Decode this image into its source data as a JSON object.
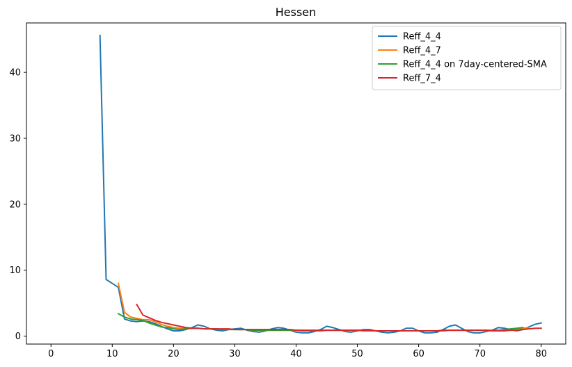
{
  "chart_data": {
    "type": "line",
    "title": "Hessen",
    "xlabel": "",
    "ylabel": "",
    "xlim": [
      -4,
      84
    ],
    "ylim": [
      -1.2,
      47.5
    ],
    "xticks": [
      0,
      10,
      20,
      30,
      40,
      50,
      60,
      70,
      80
    ],
    "yticks": [
      0,
      10,
      20,
      30,
      40
    ],
    "grid": false,
    "legend_position": "top-right",
    "series": [
      {
        "name": "Reff_4_4",
        "color": "#1f77b4",
        "x": [
          8,
          9,
          10,
          11,
          12,
          13,
          14,
          15,
          16,
          17,
          18,
          19,
          20,
          21,
          22,
          23,
          24,
          25,
          26,
          27,
          28,
          29,
          30,
          31,
          32,
          33,
          34,
          35,
          36,
          37,
          38,
          39,
          40,
          41,
          42,
          43,
          44,
          45,
          46,
          47,
          48,
          49,
          50,
          51,
          52,
          53,
          54,
          55,
          56,
          57,
          58,
          59,
          60,
          61,
          62,
          63,
          64,
          65,
          66,
          67,
          68,
          69,
          70,
          71,
          72,
          73,
          74,
          75,
          76,
          77,
          78,
          79,
          80
        ],
        "values": [
          45.6,
          8.6,
          8.0,
          7.4,
          2.6,
          2.3,
          2.2,
          2.3,
          2.2,
          1.9,
          1.5,
          1.1,
          0.8,
          0.8,
          1.0,
          1.3,
          1.7,
          1.5,
          1.1,
          0.9,
          0.8,
          1.0,
          1.1,
          1.2,
          0.9,
          0.7,
          0.6,
          0.8,
          1.1,
          1.3,
          1.2,
          0.9,
          0.6,
          0.5,
          0.5,
          0.7,
          1.0,
          1.5,
          1.3,
          1.0,
          0.7,
          0.6,
          0.8,
          1.0,
          1.0,
          0.8,
          0.6,
          0.5,
          0.6,
          0.8,
          1.2,
          1.2,
          0.8,
          0.5,
          0.5,
          0.6,
          1.0,
          1.5,
          1.7,
          1.2,
          0.7,
          0.5,
          0.5,
          0.7,
          0.9,
          1.3,
          1.2,
          1.0,
          0.8,
          1.0,
          1.4,
          1.8,
          2.0
        ]
      },
      {
        "name": "Reff_4_7",
        "color": "#ff7f0e",
        "x": [
          11,
          12,
          13,
          14,
          15,
          16,
          17,
          18,
          19,
          20,
          21,
          22,
          23,
          24,
          25,
          26,
          27,
          28,
          29,
          30,
          31,
          32,
          33,
          34,
          35,
          36,
          37,
          38,
          39,
          40,
          41,
          42,
          43,
          44,
          45,
          46,
          47,
          48,
          49,
          50,
          51,
          52,
          53,
          54,
          55,
          56,
          57,
          58,
          59,
          60,
          61,
          62,
          63,
          64,
          65,
          66,
          67,
          68,
          69,
          70,
          71,
          72,
          73,
          74,
          75,
          76,
          77,
          78
        ],
        "values": [
          8.0,
          3.6,
          2.9,
          2.7,
          2.5,
          2.5,
          2.2,
          1.8,
          1.5,
          1.3,
          1.2,
          1.2,
          1.2,
          1.2,
          1.1,
          1.1,
          1.1,
          1.0,
          1.0,
          1.0,
          1.0,
          1.0,
          0.9,
          0.9,
          0.9,
          0.9,
          0.9,
          0.9,
          0.9,
          0.9,
          0.9,
          0.8,
          0.8,
          0.8,
          0.9,
          0.9,
          0.9,
          0.9,
          0.9,
          0.9,
          0.9,
          0.8,
          0.8,
          0.8,
          0.8,
          0.8,
          0.8,
          0.8,
          0.8,
          0.8,
          0.8,
          0.8,
          0.8,
          0.8,
          0.9,
          0.9,
          0.9,
          0.9,
          0.9,
          0.9,
          0.9,
          0.8,
          0.8,
          0.9,
          0.9,
          1.0,
          1.2,
          1.3
        ]
      },
      {
        "name": "Reff_4_4 on 7day-centered-SMA",
        "color": "#2ca02c",
        "x": [
          11,
          12,
          13,
          14,
          15,
          16,
          17,
          18,
          19,
          20,
          21,
          22,
          23,
          24,
          25,
          26,
          27,
          28,
          29,
          30,
          31,
          32,
          33,
          34,
          35,
          36,
          37,
          38,
          39,
          40,
          41,
          42,
          43,
          44,
          45,
          46,
          47,
          48,
          49,
          50,
          51,
          52,
          53,
          54,
          55,
          56,
          57,
          58,
          59,
          60,
          61,
          62,
          63,
          64,
          65,
          66,
          67,
          68,
          69,
          70,
          71,
          72,
          73,
          74,
          75,
          76,
          77
        ],
        "values": [
          3.4,
          2.9,
          2.6,
          2.5,
          2.4,
          2.0,
          1.7,
          1.4,
          1.3,
          1.1,
          1.0,
          1.1,
          1.2,
          1.2,
          1.1,
          1.1,
          1.1,
          1.0,
          1.0,
          1.0,
          1.0,
          1.0,
          0.9,
          0.9,
          0.9,
          0.9,
          0.9,
          0.9,
          0.9,
          0.9,
          0.8,
          0.8,
          0.8,
          0.8,
          0.9,
          0.9,
          0.9,
          0.9,
          0.9,
          0.9,
          0.8,
          0.8,
          0.8,
          0.8,
          0.8,
          0.8,
          0.8,
          0.8,
          0.8,
          0.8,
          0.8,
          0.8,
          0.8,
          0.8,
          0.9,
          0.9,
          0.9,
          0.9,
          0.9,
          0.9,
          0.9,
          0.9,
          0.9,
          1.0,
          1.1,
          1.2,
          1.3
        ]
      },
      {
        "name": "Reff_7_4",
        "color": "#d62728",
        "x": [
          14,
          15,
          16,
          17,
          18,
          19,
          20,
          21,
          22,
          23,
          24,
          25,
          26,
          27,
          28,
          29,
          30,
          31,
          32,
          33,
          34,
          35,
          36,
          37,
          38,
          39,
          40,
          41,
          42,
          43,
          44,
          45,
          46,
          47,
          48,
          49,
          50,
          51,
          52,
          53,
          54,
          55,
          56,
          57,
          58,
          59,
          60,
          61,
          62,
          63,
          64,
          65,
          66,
          67,
          68,
          69,
          70,
          71,
          72,
          73,
          74,
          75,
          76,
          77,
          78,
          79,
          80
        ],
        "values": [
          4.8,
          3.2,
          2.8,
          2.4,
          2.1,
          1.9,
          1.7,
          1.5,
          1.3,
          1.2,
          1.2,
          1.1,
          1.1,
          1.1,
          1.1,
          1.1,
          1.0,
          1.0,
          1.0,
          1.0,
          1.0,
          1.0,
          1.0,
          1.0,
          1.0,
          1.0,
          0.9,
          0.9,
          0.9,
          0.9,
          0.9,
          0.9,
          0.9,
          0.9,
          0.9,
          0.9,
          0.9,
          0.9,
          0.9,
          0.8,
          0.8,
          0.8,
          0.8,
          0.8,
          0.8,
          0.8,
          0.8,
          0.8,
          0.8,
          0.8,
          0.9,
          0.9,
          0.9,
          0.9,
          0.9,
          0.9,
          0.9,
          0.9,
          0.8,
          0.8,
          0.8,
          0.9,
          0.9,
          1.0,
          1.1,
          1.2,
          1.2
        ]
      }
    ]
  }
}
